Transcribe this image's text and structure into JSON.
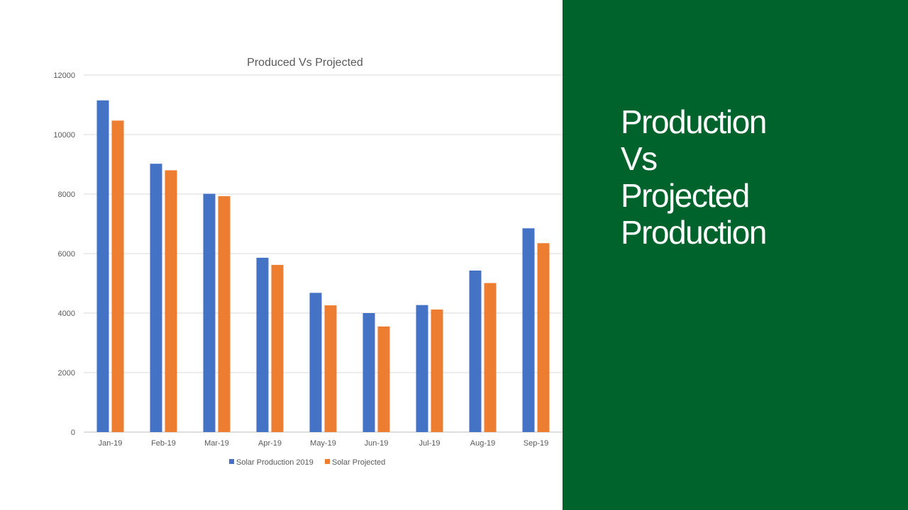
{
  "slide": {
    "heading_lines": [
      "Production",
      "Vs",
      "Projected",
      "Production"
    ],
    "panel_color": "#00632c"
  },
  "chart_data": {
    "type": "bar",
    "title": "Produced Vs Projected",
    "categories": [
      "Jan-19",
      "Feb-19",
      "Mar-19",
      "Apr-19",
      "May-19",
      "Jun-19",
      "Jul-19",
      "Aug-19",
      "Sep-19"
    ],
    "series": [
      {
        "name": "Solar Production 2019",
        "color": "#4472c4",
        "values": [
          11150,
          9020,
          8010,
          5860,
          4680,
          4000,
          4270,
          5430,
          6850
        ]
      },
      {
        "name": "Solar Projected",
        "color": "#ed7d31",
        "values": [
          10470,
          8800,
          7930,
          5620,
          4260,
          3550,
          4120,
          5010,
          6350
        ]
      }
    ],
    "y_ticks": [
      "0",
      "2000",
      "4000",
      "6000",
      "8000",
      "10000",
      "12000"
    ],
    "ylim": [
      0,
      12000
    ],
    "grid": true,
    "legend_position": "bottom"
  }
}
